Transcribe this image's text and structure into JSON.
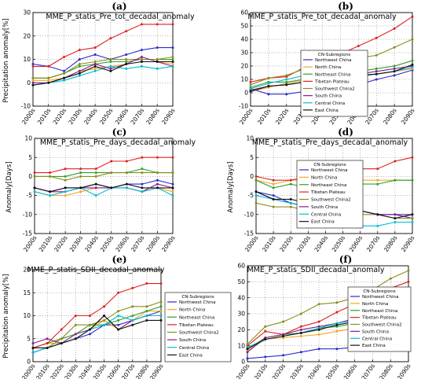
{
  "chart_data": [
    {
      "type": "line",
      "letter": "(a)",
      "title": "MME_P_statis_Pre_tot_decadal_anomaly",
      "ylabel": "Precipitation anomaly[%]",
      "xlabel": "",
      "x": [
        "2000s",
        "2010s",
        "2020s",
        "2030s",
        "2040s",
        "2050s",
        "2060s",
        "2070s",
        "2080s",
        "2090s"
      ],
      "ylim": [
        -10,
        30
      ],
      "yticks": [
        -10,
        0,
        10,
        20,
        30
      ],
      "grid": true,
      "legend_position": "none",
      "series": [
        {
          "name": "Northwest China",
          "color": "#2b2bcc",
          "values": [
            8,
            7,
            5,
            10,
            12,
            10,
            12,
            14,
            15,
            15
          ]
        },
        {
          "name": "North China",
          "color": "#f5a623",
          "values": [
            1,
            1,
            2,
            5,
            6,
            7,
            8,
            9,
            9,
            8
          ]
        },
        {
          "name": "Northeast China",
          "color": "#2ca02c",
          "values": [
            2,
            2,
            4,
            7,
            8,
            9,
            9,
            10,
            10,
            10
          ]
        },
        {
          "name": "Tibetan Plateau",
          "color": "#dd2222",
          "values": [
            7,
            7,
            11,
            14,
            15,
            19,
            22,
            25,
            25,
            25
          ]
        },
        {
          "name": "Southwest China2",
          "color": "#8c8c1a",
          "values": [
            2,
            2,
            4,
            8,
            9,
            10,
            10,
            10,
            10,
            11
          ]
        },
        {
          "name": "South China",
          "color": "#8b1a8b",
          "values": [
            0,
            0,
            2,
            5,
            8,
            6,
            8,
            11,
            9,
            7
          ]
        },
        {
          "name": "Central China",
          "color": "#00bcd4",
          "values": [
            -1,
            0,
            1,
            3,
            5,
            7,
            6,
            7,
            6,
            7
          ]
        },
        {
          "name": "East China",
          "color": "#111111",
          "values": [
            -1,
            0,
            2,
            4,
            7,
            5,
            8,
            9,
            9,
            9
          ]
        }
      ]
    },
    {
      "type": "line",
      "letter": "(b)",
      "title": "MME_P_statis_Pre_tot_decadal_anomaly",
      "ylabel": "",
      "xlabel": "",
      "x": [
        "2000s",
        "2010s",
        "2020s",
        "2030s",
        "2040s",
        "2050s",
        "2060s",
        "2070s",
        "2080s",
        "2090s"
      ],
      "ylim": [
        -10,
        60
      ],
      "yticks": [
        -10,
        0,
        10,
        20,
        30,
        40,
        50,
        60
      ],
      "grid": true,
      "legend_title": "CN-Subregions",
      "legend_position": "upper-left",
      "series": [
        {
          "name": "Northwest China",
          "color": "#2b2bcc",
          "values": [
            3,
            -1,
            -1,
            1,
            4,
            3,
            6,
            10,
            13,
            17
          ]
        },
        {
          "name": "North China",
          "color": "#f5a623",
          "values": [
            1,
            4,
            7,
            9,
            10,
            12,
            13,
            14,
            16,
            18
          ]
        },
        {
          "name": "Northeast China",
          "color": "#2ca02c",
          "values": [
            4,
            8,
            8,
            10,
            13,
            14,
            16,
            18,
            20,
            24
          ]
        },
        {
          "name": "Tibetan Plateau",
          "color": "#dd2222",
          "values": [
            8,
            11,
            12,
            19,
            24,
            29,
            35,
            41,
            48,
            57
          ]
        },
        {
          "name": "Southwest China2",
          "color": "#8c8c1a",
          "values": [
            6,
            11,
            13,
            18,
            21,
            23,
            26,
            28,
            34,
            40
          ]
        },
        {
          "name": "South China",
          "color": "#8b1a8b",
          "values": [
            2,
            5,
            6,
            8,
            11,
            12,
            14,
            16,
            18,
            20
          ]
        },
        {
          "name": "Central China",
          "color": "#00bcd4",
          "values": [
            3,
            7,
            10,
            13,
            11,
            12,
            12,
            14,
            16,
            19
          ]
        },
        {
          "name": "East China",
          "color": "#111111",
          "values": [
            1,
            5,
            6,
            8,
            9,
            11,
            13,
            14,
            16,
            21
          ]
        }
      ]
    },
    {
      "type": "line",
      "letter": "(c)",
      "title": "MME_P_statis_Pre_days_decadal_anomaly",
      "ylabel": "Anomaly[Days]",
      "xlabel": "",
      "x": [
        "2000s",
        "2010s",
        "2020s",
        "2030s",
        "2040s",
        "2050s",
        "2060s",
        "2070s",
        "2080s",
        "2090s"
      ],
      "ylim": [
        -15,
        10
      ],
      "yticks": [
        -15,
        -10,
        -5,
        0,
        5,
        10
      ],
      "grid": true,
      "legend_position": "none",
      "series": [
        {
          "name": "Northwest China",
          "color": "#2b2bcc",
          "values": [
            -3,
            -4,
            -3,
            -3,
            -2,
            -3,
            -2,
            -2,
            -1,
            -2
          ]
        },
        {
          "name": "North China",
          "color": "#f5a623",
          "values": [
            -4,
            -5,
            -5,
            -4,
            -3,
            -3,
            -3,
            -4,
            -3,
            -4
          ]
        },
        {
          "name": "Northeast China",
          "color": "#2ca02c",
          "values": [
            0,
            0,
            0,
            1,
            1,
            1,
            1,
            2,
            1,
            1
          ]
        },
        {
          "name": "Tibetan Plateau",
          "color": "#dd2222",
          "values": [
            1,
            1,
            2,
            2,
            2,
            4,
            4,
            5,
            5,
            5
          ]
        },
        {
          "name": "Southwest China2",
          "color": "#8c8c1a",
          "values": [
            0,
            0,
            -1,
            0,
            0,
            1,
            1,
            1,
            1,
            1
          ]
        },
        {
          "name": "South China",
          "color": "#8b1a8b",
          "values": [
            -3,
            -4,
            -4,
            -3,
            -3,
            -3,
            -3,
            -4,
            -2,
            -3
          ]
        },
        {
          "name": "Central China",
          "color": "#00bcd4",
          "values": [
            -4,
            -5,
            -4,
            -3,
            -5,
            -3,
            -3,
            -4,
            -3,
            -5
          ]
        },
        {
          "name": "East China",
          "color": "#111111",
          "values": [
            -3,
            -4,
            -3,
            -3,
            -2,
            -3,
            -2,
            -3,
            -3,
            -3
          ]
        }
      ]
    },
    {
      "type": "line",
      "letter": "(d)",
      "title": "MME_P_statis_Pre_days_decadal_anomaly",
      "ylabel": "Anomaly[Days]",
      "xlabel": "",
      "x": [
        "2000s",
        "2010s",
        "2020s",
        "2030s",
        "2040s",
        "2050s",
        "2060s",
        "2070s",
        "2080s",
        "2090s"
      ],
      "ylim": [
        -15,
        10
      ],
      "yticks": [
        -15,
        -10,
        -5,
        0,
        5,
        10
      ],
      "grid": true,
      "legend_title": "CN-Subregions",
      "legend_position": "upper-left",
      "series": [
        {
          "name": "Northwest China",
          "color": "#2b2bcc",
          "values": [
            -4,
            -5,
            -7,
            -8,
            -8,
            -8,
            -9,
            -10,
            -10,
            -11
          ]
        },
        {
          "name": "North China",
          "color": "#f5a623",
          "values": [
            -1,
            -2,
            -1,
            -1,
            0,
            -1,
            -1,
            -1,
            -1,
            -1
          ]
        },
        {
          "name": "Northeast China",
          "color": "#2ca02c",
          "values": [
            -1,
            -3,
            -2,
            -3,
            -3,
            -2,
            -2,
            -2,
            -1,
            -1
          ]
        },
        {
          "name": "Tibetan Plateau",
          "color": "#dd2222",
          "values": [
            0,
            -1,
            -1,
            0,
            0,
            1,
            2,
            2,
            4,
            5
          ]
        },
        {
          "name": "Southwest China2",
          "color": "#8c8c1a",
          "values": [
            -7,
            -8,
            -8,
            -9,
            -9,
            -9,
            -10,
            -10,
            -11,
            -11
          ]
        },
        {
          "name": "South China",
          "color": "#8b1a8b",
          "values": [
            -4,
            -6,
            -7,
            -8,
            -8,
            -8,
            -9,
            -10,
            -10,
            -10
          ]
        },
        {
          "name": "Central China",
          "color": "#00bcd4",
          "values": [
            -5,
            -6,
            -7,
            -8,
            -10,
            -11,
            -13,
            -13,
            -12,
            -12
          ]
        },
        {
          "name": "East China",
          "color": "#111111",
          "values": [
            -4,
            -6,
            -6,
            -7,
            -8,
            -8,
            -9,
            -10,
            -11,
            -10
          ]
        }
      ]
    },
    {
      "type": "line",
      "letter": "(e)",
      "title": "MME_P_statis_SDII_decadal_anomaly",
      "ylabel": "Precipitation anomaly[%]",
      "xlabel": "",
      "x": [
        "2000s",
        "2010s",
        "2020s",
        "2030s",
        "2040s",
        "2050s",
        "2060s",
        "2070s",
        "2080s",
        "2090s"
      ],
      "ylim": [
        0,
        20
      ],
      "yticks": [
        0,
        5,
        10,
        15,
        20
      ],
      "grid": true,
      "legend_title": "CN-Subregions",
      "legend_position": "right",
      "series": [
        {
          "name": "Northwest China",
          "color": "#2b2bcc",
          "values": [
            2,
            3,
            4,
            5,
            6,
            8,
            8,
            9,
            10,
            11
          ]
        },
        {
          "name": "North China",
          "color": "#f5a623",
          "values": [
            3,
            4,
            4,
            5,
            7,
            9,
            7,
            9,
            11,
            11
          ]
        },
        {
          "name": "Northeast China",
          "color": "#2ca02c",
          "values": [
            3,
            4,
            5,
            6,
            8,
            8,
            9,
            10,
            11,
            12
          ]
        },
        {
          "name": "Tibetan Plateau",
          "color": "#dd2222",
          "values": [
            3,
            4,
            7,
            10,
            10,
            12,
            15,
            16,
            17,
            17
          ]
        },
        {
          "name": "Southwest China2",
          "color": "#8c8c1a",
          "values": [
            3,
            3,
            5,
            8,
            8,
            9,
            11,
            12,
            12,
            13
          ]
        },
        {
          "name": "South China",
          "color": "#8b1a8b",
          "values": [
            4,
            5,
            4,
            6,
            7,
            10,
            7,
            9,
            10,
            10
          ]
        },
        {
          "name": "Central China",
          "color": "#00bcd4",
          "values": [
            2,
            3,
            4,
            5,
            7,
            8,
            10,
            9,
            10,
            10
          ]
        },
        {
          "name": "East China",
          "color": "#111111",
          "values": [
            3,
            3,
            4,
            5,
            7,
            10,
            7,
            8,
            9,
            9
          ]
        }
      ]
    },
    {
      "type": "line",
      "letter": "(f)",
      "title": "MME_P_statis_SDII_decadal_anomaly",
      "ylabel": "",
      "xlabel": "",
      "x": [
        "2000s",
        "2010s",
        "2020s",
        "2030s",
        "2040s",
        "2050s",
        "2060s",
        "2070s",
        "2080s",
        "2090s"
      ],
      "ylim": [
        0,
        60
      ],
      "yticks": [
        0,
        10,
        20,
        30,
        40,
        50,
        60
      ],
      "grid": true,
      "legend_title": "CN-Subregions",
      "legend_position": "right",
      "series": [
        {
          "name": "Northwest China",
          "color": "#2b2bcc",
          "values": [
            2,
            3,
            4,
            6,
            8,
            8,
            9,
            11,
            12,
            14
          ]
        },
        {
          "name": "North China",
          "color": "#f5a623",
          "values": [
            7,
            14,
            15,
            16,
            17,
            19,
            21,
            22,
            24,
            26
          ]
        },
        {
          "name": "Northeast China",
          "color": "#2ca02c",
          "values": [
            8,
            15,
            17,
            18,
            21,
            22,
            24,
            26,
            28,
            31
          ]
        },
        {
          "name": "Tibetan Plateau",
          "color": "#dd2222",
          "values": [
            10,
            19,
            17,
            22,
            25,
            31,
            36,
            41,
            46,
            50
          ]
        },
        {
          "name": "Southwest China2",
          "color": "#8c8c1a",
          "values": [
            11,
            22,
            25,
            30,
            36,
            37,
            40,
            45,
            52,
            57
          ]
        },
        {
          "name": "South China",
          "color": "#8b1a8b",
          "values": [
            6,
            15,
            17,
            20,
            22,
            24,
            27,
            29,
            32,
            35
          ]
        },
        {
          "name": "Central China",
          "color": "#00bcd4",
          "values": [
            9,
            14,
            16,
            18,
            21,
            24,
            26,
            28,
            30,
            32
          ]
        },
        {
          "name": "East China",
          "color": "#111111",
          "values": [
            8,
            14,
            16,
            18,
            20,
            23,
            25,
            27,
            29,
            33
          ]
        }
      ]
    }
  ]
}
